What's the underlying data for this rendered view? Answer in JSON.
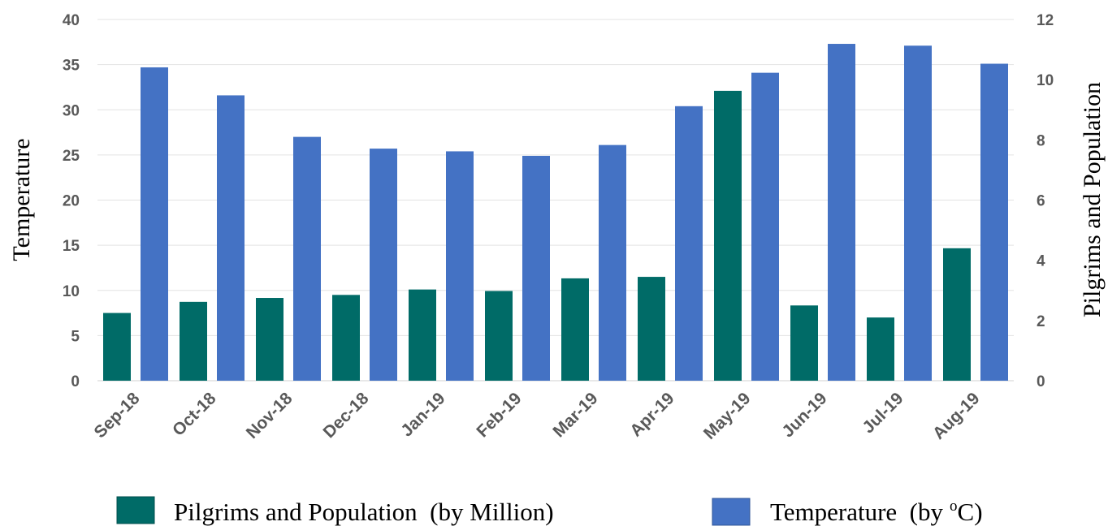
{
  "chart_data": {
    "type": "bar",
    "categories": [
      "Sep-18",
      "Oct-18",
      "Nov-18",
      "Dec-18",
      "Jan-19",
      "Feb-19",
      "Mar-19",
      "Apr-19",
      "May-19",
      "Jun-19",
      "Jul-19",
      "Aug-19"
    ],
    "series": [
      {
        "name": "Pilgrims and Population  (by Million)",
        "axis": "right",
        "color": "#006b67",
        "values": [
          2.25,
          2.62,
          2.75,
          2.85,
          3.03,
          2.98,
          3.4,
          3.45,
          9.63,
          2.5,
          2.1,
          4.4
        ]
      },
      {
        "name": "Temperature  (by",
        "name_unit": "C)",
        "name_superscript": "o",
        "axis": "left",
        "color": "#4472c4",
        "values": [
          34.7,
          31.6,
          27.0,
          25.7,
          25.4,
          24.9,
          26.1,
          30.4,
          34.1,
          37.3,
          37.1,
          35.1
        ]
      }
    ],
    "ylabel": "Temperature",
    "y2label": "Pilgrims and Population",
    "ylim": [
      0,
      40
    ],
    "y2lim": [
      0,
      12
    ],
    "yticks": [
      "0",
      "5",
      "10",
      "15",
      "20",
      "25",
      "30",
      "35",
      "40"
    ],
    "y2ticks": [
      "0",
      "2",
      "4",
      "6",
      "8",
      "10",
      "12"
    ],
    "grid": true,
    "legend_position": "bottom"
  }
}
